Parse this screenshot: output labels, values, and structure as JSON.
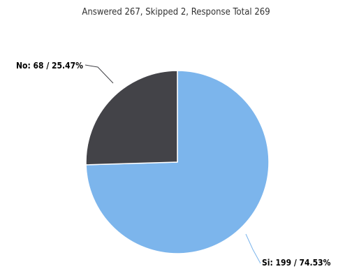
{
  "chart_data": {
    "type": "pie",
    "title": "",
    "subtitle": "Answered 267, Skipped 2, Response Total 269",
    "series": [
      {
        "slices": [
          {
            "label": "Si",
            "value": 199,
            "percent": 74.53,
            "color": "#7cb5ec",
            "data_label": "Si: 199 / 74.53%"
          },
          {
            "label": "No",
            "value": 68,
            "percent": 25.47,
            "color": "#434348",
            "data_label": "No: 68 / 25.47%"
          }
        ]
      }
    ],
    "start_angle_deg": 0,
    "direction": "clockwise"
  }
}
